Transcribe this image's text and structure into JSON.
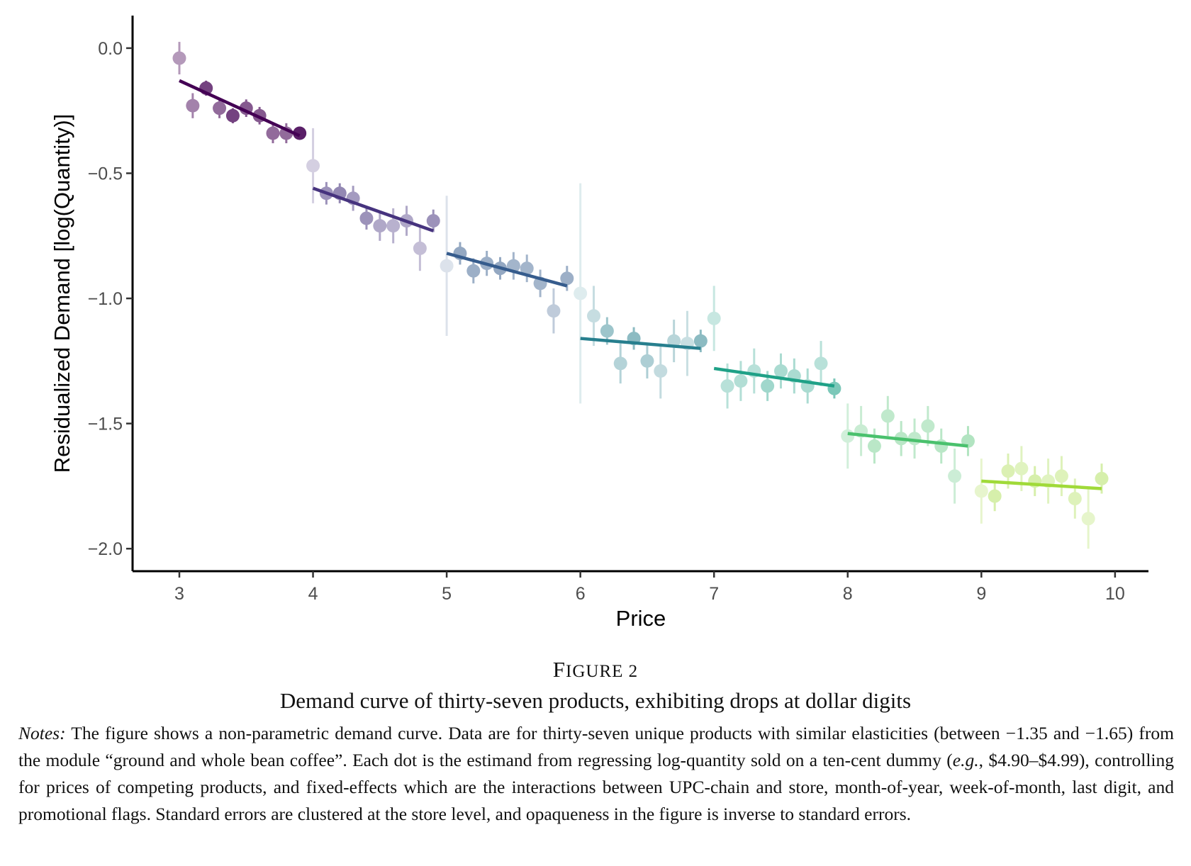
{
  "chart_data": {
    "type": "scatter",
    "xlabel": "Price",
    "ylabel": "Residualized Demand [log(Quantity)]",
    "xlim": [
      2.65,
      10.25
    ],
    "ylim": [
      -2.09,
      0.13
    ],
    "xticks": [
      3,
      4,
      5,
      6,
      7,
      8,
      9,
      10
    ],
    "xtick_labels": [
      "3",
      "4",
      "5",
      "6",
      "7",
      "8",
      "9",
      "10"
    ],
    "yticks": [
      0.0,
      -0.5,
      -1.0,
      -1.5,
      -2.0
    ],
    "ytick_labels": [
      "0.0",
      "−0.5",
      "−1.0",
      "−1.5",
      "−2.0"
    ],
    "grid": false,
    "legend": "none",
    "colors": [
      "#440154",
      "#46337e",
      "#365c8d",
      "#277f8e",
      "#1fa187",
      "#4ac16d",
      "#a0da39",
      "#fde725"
    ],
    "points": [
      {
        "x": 3.0,
        "y": -0.04,
        "se": 0.065,
        "g": 0
      },
      {
        "x": 3.1,
        "y": -0.23,
        "se": 0.05,
        "g": 0
      },
      {
        "x": 3.2,
        "y": -0.16,
        "se": 0.03,
        "g": 0
      },
      {
        "x": 3.3,
        "y": -0.24,
        "se": 0.04,
        "g": 0
      },
      {
        "x": 3.4,
        "y": -0.27,
        "se": 0.03,
        "g": 0
      },
      {
        "x": 3.5,
        "y": -0.24,
        "se": 0.035,
        "g": 0
      },
      {
        "x": 3.6,
        "y": -0.27,
        "se": 0.035,
        "g": 0
      },
      {
        "x": 3.7,
        "y": -0.34,
        "se": 0.04,
        "g": 0
      },
      {
        "x": 3.8,
        "y": -0.34,
        "se": 0.04,
        "g": 0
      },
      {
        "x": 3.9,
        "y": -0.34,
        "se": 0.02,
        "g": 0
      },
      {
        "x": 4.0,
        "y": -0.47,
        "se": 0.15,
        "g": 1
      },
      {
        "x": 4.1,
        "y": -0.58,
        "se": 0.045,
        "g": 1
      },
      {
        "x": 4.2,
        "y": -0.58,
        "se": 0.04,
        "g": 1
      },
      {
        "x": 4.3,
        "y": -0.6,
        "se": 0.05,
        "g": 1
      },
      {
        "x": 4.4,
        "y": -0.68,
        "se": 0.045,
        "g": 1
      },
      {
        "x": 4.5,
        "y": -0.71,
        "se": 0.06,
        "g": 1
      },
      {
        "x": 4.6,
        "y": -0.71,
        "se": 0.07,
        "g": 1
      },
      {
        "x": 4.7,
        "y": -0.69,
        "se": 0.06,
        "g": 1
      },
      {
        "x": 4.8,
        "y": -0.8,
        "se": 0.09,
        "g": 1
      },
      {
        "x": 4.9,
        "y": -0.69,
        "se": 0.045,
        "g": 1
      },
      {
        "x": 5.0,
        "y": -0.87,
        "se": 0.28,
        "g": 2
      },
      {
        "x": 5.1,
        "y": -0.82,
        "se": 0.045,
        "g": 2
      },
      {
        "x": 5.2,
        "y": -0.89,
        "se": 0.05,
        "g": 2
      },
      {
        "x": 5.3,
        "y": -0.86,
        "se": 0.05,
        "g": 2
      },
      {
        "x": 5.4,
        "y": -0.88,
        "se": 0.045,
        "g": 2
      },
      {
        "x": 5.5,
        "y": -0.87,
        "se": 0.055,
        "g": 2
      },
      {
        "x": 5.6,
        "y": -0.88,
        "se": 0.055,
        "g": 2
      },
      {
        "x": 5.7,
        "y": -0.94,
        "se": 0.055,
        "g": 2
      },
      {
        "x": 5.8,
        "y": -1.05,
        "se": 0.09,
        "g": 2
      },
      {
        "x": 5.9,
        "y": -0.92,
        "se": 0.05,
        "g": 2
      },
      {
        "x": 6.0,
        "y": -0.98,
        "se": 0.44,
        "g": 3
      },
      {
        "x": 6.1,
        "y": -1.07,
        "se": 0.12,
        "g": 3
      },
      {
        "x": 6.2,
        "y": -1.13,
        "se": 0.055,
        "g": 3
      },
      {
        "x": 6.3,
        "y": -1.26,
        "se": 0.08,
        "g": 3
      },
      {
        "x": 6.4,
        "y": -1.16,
        "se": 0.045,
        "g": 3
      },
      {
        "x": 6.5,
        "y": -1.25,
        "se": 0.07,
        "g": 3
      },
      {
        "x": 6.6,
        "y": -1.29,
        "se": 0.11,
        "g": 3
      },
      {
        "x": 6.7,
        "y": -1.17,
        "se": 0.085,
        "g": 3
      },
      {
        "x": 6.8,
        "y": -1.18,
        "se": 0.13,
        "g": 3
      },
      {
        "x": 6.9,
        "y": -1.17,
        "se": 0.045,
        "g": 3
      },
      {
        "x": 7.0,
        "y": -1.08,
        "se": 0.13,
        "g": 4
      },
      {
        "x": 7.1,
        "y": -1.35,
        "se": 0.09,
        "g": 4
      },
      {
        "x": 7.2,
        "y": -1.33,
        "se": 0.08,
        "g": 4
      },
      {
        "x": 7.3,
        "y": -1.29,
        "se": 0.09,
        "g": 4
      },
      {
        "x": 7.4,
        "y": -1.35,
        "se": 0.06,
        "g": 4
      },
      {
        "x": 7.5,
        "y": -1.29,
        "se": 0.07,
        "g": 4
      },
      {
        "x": 7.6,
        "y": -1.31,
        "se": 0.07,
        "g": 4
      },
      {
        "x": 7.7,
        "y": -1.35,
        "se": 0.07,
        "g": 4
      },
      {
        "x": 7.8,
        "y": -1.26,
        "se": 0.09,
        "g": 4
      },
      {
        "x": 7.9,
        "y": -1.36,
        "se": 0.04,
        "g": 4
      },
      {
        "x": 8.0,
        "y": -1.55,
        "se": 0.13,
        "g": 5
      },
      {
        "x": 8.1,
        "y": -1.53,
        "se": 0.1,
        "g": 5
      },
      {
        "x": 8.2,
        "y": -1.59,
        "se": 0.07,
        "g": 5
      },
      {
        "x": 8.3,
        "y": -1.47,
        "se": 0.08,
        "g": 5
      },
      {
        "x": 8.4,
        "y": -1.56,
        "se": 0.07,
        "g": 5
      },
      {
        "x": 8.5,
        "y": -1.56,
        "se": 0.08,
        "g": 5
      },
      {
        "x": 8.6,
        "y": -1.51,
        "se": 0.08,
        "g": 5
      },
      {
        "x": 8.7,
        "y": -1.59,
        "se": 0.07,
        "g": 5
      },
      {
        "x": 8.8,
        "y": -1.71,
        "se": 0.11,
        "g": 5
      },
      {
        "x": 8.9,
        "y": -1.57,
        "se": 0.06,
        "g": 5
      },
      {
        "x": 9.0,
        "y": -1.77,
        "se": 0.13,
        "g": 6
      },
      {
        "x": 9.1,
        "y": -1.79,
        "se": 0.06,
        "g": 6
      },
      {
        "x": 9.2,
        "y": -1.69,
        "se": 0.07,
        "g": 6
      },
      {
        "x": 9.3,
        "y": -1.68,
        "se": 0.09,
        "g": 6
      },
      {
        "x": 9.4,
        "y": -1.73,
        "se": 0.06,
        "g": 6
      },
      {
        "x": 9.5,
        "y": -1.73,
        "se": 0.09,
        "g": 6
      },
      {
        "x": 9.6,
        "y": -1.71,
        "se": 0.08,
        "g": 6
      },
      {
        "x": 9.7,
        "y": -1.8,
        "se": 0.08,
        "g": 6
      },
      {
        "x": 9.8,
        "y": -1.88,
        "se": 0.12,
        "g": 6
      },
      {
        "x": 9.9,
        "y": -1.72,
        "se": 0.06,
        "g": 6
      }
    ],
    "fit_lines": [
      {
        "x": [
          3.0,
          3.9
        ],
        "y": [
          -0.13,
          -0.35
        ],
        "g": 0
      },
      {
        "x": [
          4.0,
          4.9
        ],
        "y": [
          -0.56,
          -0.73
        ],
        "g": 1
      },
      {
        "x": [
          5.0,
          5.9
        ],
        "y": [
          -0.82,
          -0.95
        ],
        "g": 2
      },
      {
        "x": [
          6.0,
          6.9
        ],
        "y": [
          -1.16,
          -1.2
        ],
        "g": 3
      },
      {
        "x": [
          7.0,
          7.9
        ],
        "y": [
          -1.28,
          -1.35
        ],
        "g": 4
      },
      {
        "x": [
          8.0,
          8.9
        ],
        "y": [
          -1.54,
          -1.59
        ],
        "g": 5
      },
      {
        "x": [
          9.0,
          9.9
        ],
        "y": [
          -1.73,
          -1.76
        ],
        "g": 6
      }
    ]
  },
  "caption": {
    "figure_label_first": "F",
    "figure_label_rest": "IGURE 2",
    "title": "Demand curve of thirty-seven products, exhibiting drops at dollar digits",
    "notes_label": "Notes:",
    "notes_text_1": " The figure shows a non-parametric demand curve. Data are for thirty-seven unique products with similar elasticities (between −1.35 and −1.65) from the module “ground and whole bean coffee”. Each dot is the estimand from regressing log-quantity sold on a ten-cent dummy (",
    "notes_eg": "e.g.",
    "notes_text_2": ", $4.90–$4.99), controlling for prices of competing products, and fixed-effects which are the interactions between UPC-chain and store, month-of-year, week-of-month, last digit, and promotional flags. Standard errors are clustered at the store level, and opaqueness in the figure is inverse to standard errors."
  }
}
